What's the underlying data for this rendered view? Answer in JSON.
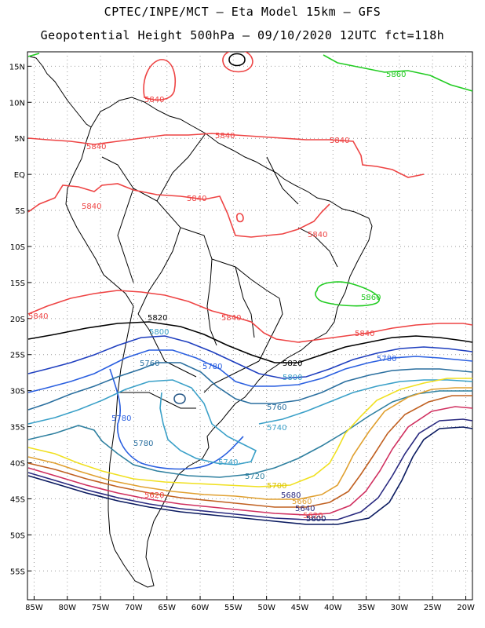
{
  "title_line1": "CPTEC/INPE/MCT –  Eta Model 15km – GFS",
  "title_line2": "Geopotential Height 500hPa – 09/10/2020 12UTC fct=118h",
  "chart_data": {
    "type": "contour-map",
    "field": "Geopotential Height 500hPa",
    "lon_range": [
      -86,
      -19
    ],
    "lat_range": [
      -59,
      17
    ],
    "lon_ticks": [
      "85W",
      "80W",
      "75W",
      "70W",
      "65W",
      "60W",
      "55W",
      "50W",
      "45W",
      "40W",
      "35W",
      "30W",
      "25W",
      "20W"
    ],
    "lat_ticks": [
      "15N",
      "10N",
      "5N",
      "EQ",
      "5S",
      "10S",
      "15S",
      "20S",
      "25S",
      "30S",
      "35S",
      "40S",
      "45S",
      "50S",
      "55S"
    ],
    "grid": "dotted",
    "contours": [
      {
        "level": 5860,
        "label": "5860",
        "color": "#22cc22"
      },
      {
        "level": 5840,
        "label": "5840",
        "color": "#ee4444"
      },
      {
        "level": 5820,
        "label": "5820",
        "color": "#000000"
      },
      {
        "level": 5800,
        "label": "5800",
        "color": "#1f3fbf"
      },
      {
        "level": 5780,
        "label": "5780",
        "color": "#2a5fe0"
      },
      {
        "level": 5760,
        "label": "5760",
        "color": "#2a6f9f"
      },
      {
        "level": 5740,
        "label": "5740",
        "color": "#3aa0c8"
      },
      {
        "level": 5720,
        "label": "5720",
        "color": "#2f80a0"
      },
      {
        "level": 5700,
        "label": "5700",
        "color": "#f0e020"
      },
      {
        "level": 5680,
        "label": "5680",
        "color": "#e0a030"
      },
      {
        "level": 5660,
        "label": "5660",
        "color": "#c06020"
      },
      {
        "level": 5640,
        "label": "5640",
        "color": "#d03060"
      },
      {
        "level": 5620,
        "label": "5620",
        "color": "#2a2a80"
      },
      {
        "level": 5600,
        "label": "5600",
        "color": "#0a1a60"
      }
    ]
  }
}
